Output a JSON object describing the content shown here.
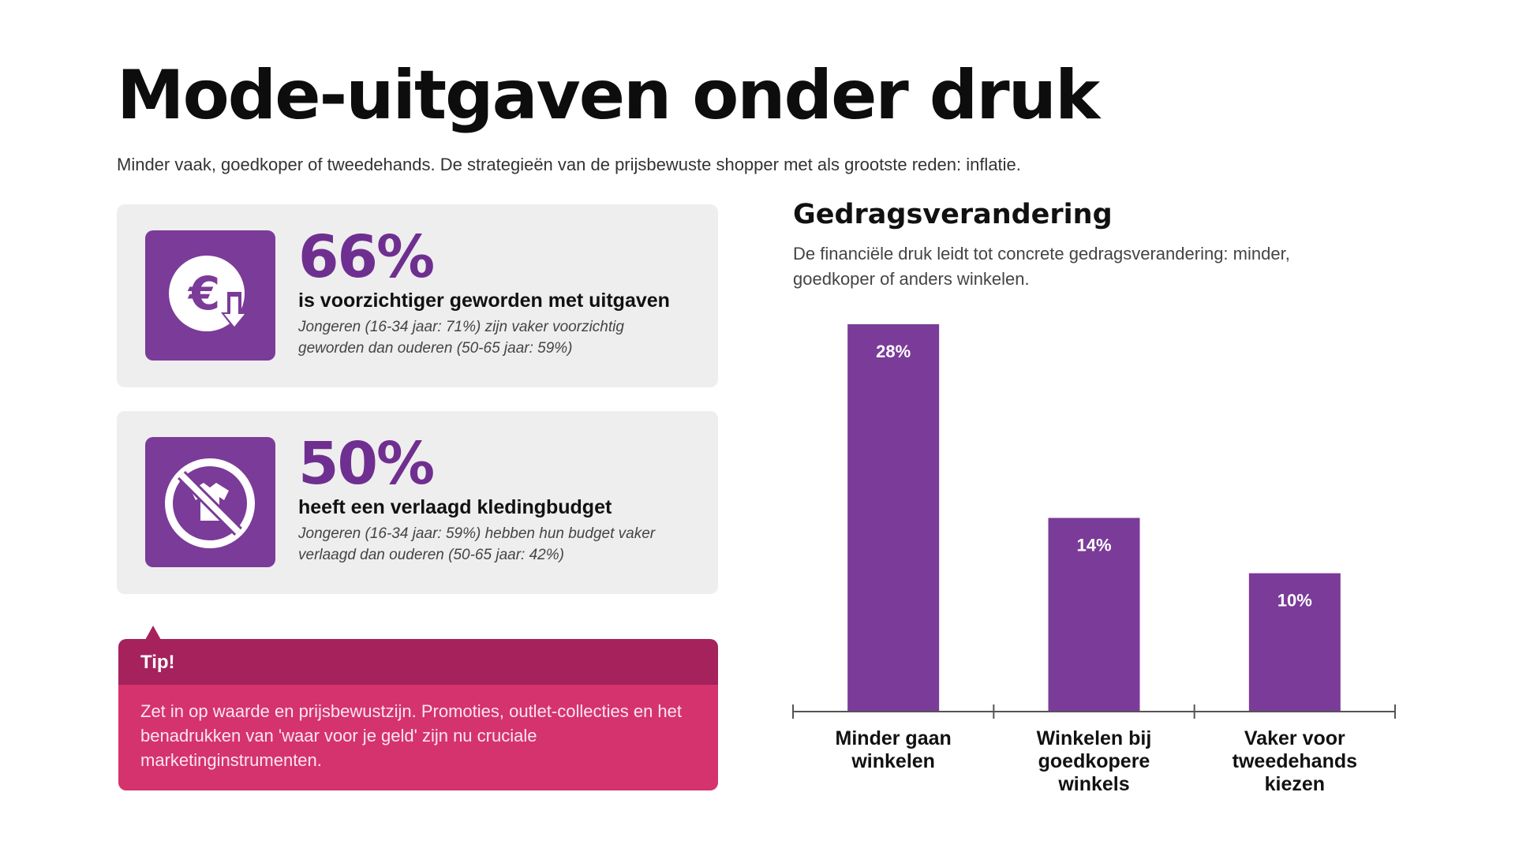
{
  "header": {
    "title": "Mode-uitgaven onder druk",
    "subtitle": "Minder vaak, goedkoper of tweedehands. De strategieën van de prijsbewuste shopper met als grootste reden: inflatie."
  },
  "cards": [
    {
      "icon": "euro-down-icon",
      "percent": "66%",
      "headline": "is voorzichtiger geworden met uitgaven",
      "detail": "Jongeren (16-34 jaar: 71%) zijn vaker voorzichtig geworden dan ouderen (50-65 jaar: 59%)"
    },
    {
      "icon": "no-clothing-icon",
      "percent": "50%",
      "headline": "heeft een verlaagd kledingbudget",
      "detail": "Jongeren (16-34 jaar: 59%) hebben hun budget vaker verlaagd dan ouderen (50-65 jaar: 42%)"
    }
  ],
  "tip": {
    "label": "Tip!",
    "text": "Zet in op waarde en prijsbewustzijn. Promoties, outlet-collecties en het benadrukken van 'waar voor je geld' zijn nu cruciale marketinginstrumenten."
  },
  "colors": {
    "accent": "#7b3b98",
    "bar": "#7b3b98",
    "tip_head": "#a5225c",
    "tip_body": "#d5336d"
  },
  "chart_data": {
    "type": "bar",
    "title": "Gedragsverandering",
    "subtitle": "De financiële druk leidt tot concrete gedragsverandering: minder, goedkoper of anders winkelen.",
    "categories": [
      [
        "Minder gaan",
        "winkelen"
      ],
      [
        "Winkelen bij",
        "goedkopere",
        "winkels"
      ],
      [
        "Vaker voor",
        "tweedehands",
        "kiezen"
      ]
    ],
    "values": [
      28,
      14,
      10
    ],
    "value_labels": [
      "28%",
      "14%",
      "10%"
    ],
    "ylim": [
      0,
      28
    ],
    "grid": false,
    "legend": "none"
  }
}
